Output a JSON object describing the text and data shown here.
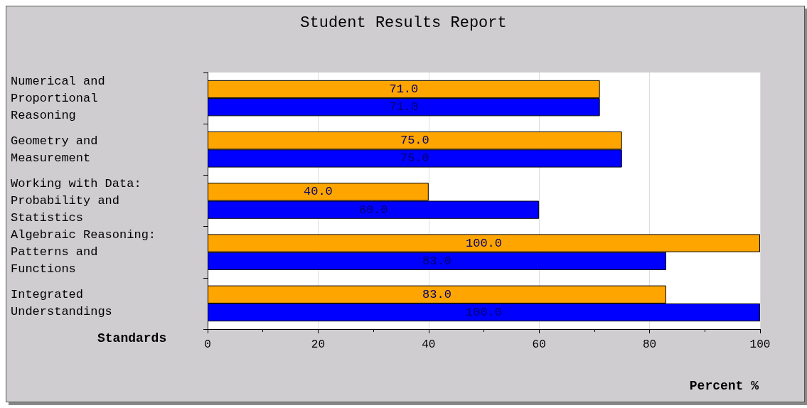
{
  "chart_data": {
    "type": "bar",
    "orientation": "horizontal",
    "title": "Student Results Report",
    "xlabel": "Percent %",
    "ylabel": "Standards",
    "categories": [
      "Numerical and Proportional Reasoning",
      "Geometry and Measurement",
      "Working with Data: Probability and Statistics",
      "Algebraic Reasoning: Patterns and Functions",
      "Integrated Understandings"
    ],
    "series": [
      {
        "color": "#ffa500",
        "values": [
          71,
          75,
          40,
          100,
          83
        ],
        "value_labels": [
          "71.0",
          "75.0",
          "40.0",
          "100.0",
          "83.0"
        ]
      },
      {
        "color": "#0000ff",
        "values": [
          71,
          75,
          60,
          83,
          100
        ],
        "value_labels": [
          "71.0",
          "75.0",
          "60.0",
          "83.0",
          "100.0"
        ]
      }
    ],
    "xlim": [
      0,
      100
    ],
    "xticks": [
      0,
      20,
      40,
      60,
      80,
      100
    ],
    "grid": "x"
  }
}
